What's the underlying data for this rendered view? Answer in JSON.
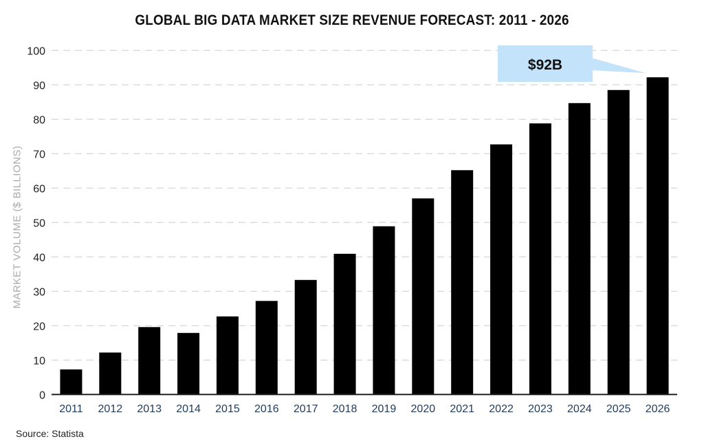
{
  "chart_data": {
    "type": "bar",
    "title": "GLOBAL BIG DATA MARKET SIZE REVENUE FORECAST: 2011 - 2026",
    "xlabel": "",
    "ylabel": "MARKET VOLUME ($ BILLIONS)",
    "ylim": [
      0,
      100
    ],
    "yticks": [
      0,
      10,
      20,
      30,
      40,
      50,
      60,
      70,
      80,
      90,
      100
    ],
    "grid": true,
    "categories": [
      "2011",
      "2012",
      "2013",
      "2014",
      "2015",
      "2016",
      "2017",
      "2018",
      "2019",
      "2020",
      "2021",
      "2022",
      "2023",
      "2024",
      "2025",
      "2026"
    ],
    "values": [
      7.3,
      12.2,
      19.6,
      17.9,
      22.7,
      27.2,
      33.3,
      40.9,
      48.9,
      57,
      65.2,
      72.7,
      78.8,
      84.7,
      88.5,
      92.2
    ],
    "annotation": {
      "text": "$92B",
      "category": "2026"
    },
    "colors": {
      "bar": "#000000",
      "callout": "#c3e3fa",
      "tick_label": "#1f3b5c",
      "grid": "#cccccc"
    }
  },
  "source": "Source: Statista"
}
